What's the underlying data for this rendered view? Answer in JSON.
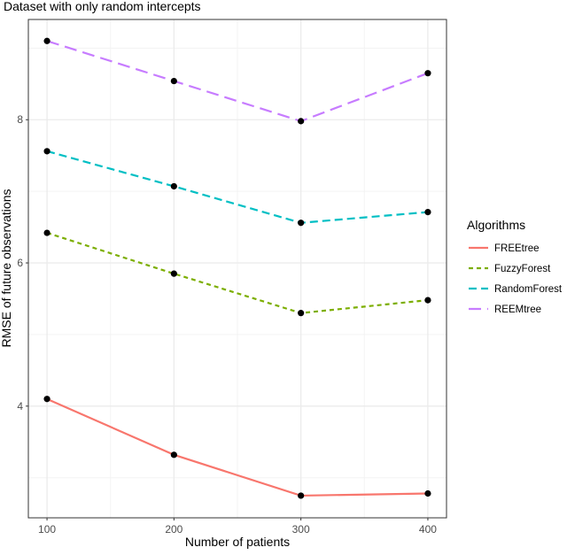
{
  "chart_data": {
    "type": "line",
    "title": "Dataset with only random intercepts",
    "xlabel": "Number of patients",
    "ylabel": "RMSE of future observations",
    "x": [
      100,
      200,
      300,
      400
    ],
    "xlim": [
      85.3,
      414.7
    ],
    "ylim": [
      2.44,
      9.4
    ],
    "xticks": [
      100,
      200,
      300,
      400
    ],
    "yticks": [
      4,
      6,
      8
    ],
    "xminor": [
      150,
      250,
      350
    ],
    "yminor": [
      3,
      5,
      7,
      9
    ],
    "grid": true,
    "legend": {
      "title": "Algorithms",
      "placement": "right"
    },
    "series": [
      {
        "name": "FREEtree",
        "color": "#F8766D",
        "dash": "solid",
        "values": [
          4.1,
          3.32,
          2.75,
          2.78
        ]
      },
      {
        "name": "FuzzyForest",
        "color": "#7CAE00",
        "dash": "short",
        "values": [
          6.42,
          5.85,
          5.3,
          5.48
        ]
      },
      {
        "name": "RandomForest",
        "color": "#00BFC4",
        "dash": "medium",
        "values": [
          7.56,
          7.07,
          6.56,
          6.71
        ]
      },
      {
        "name": "REEMtree",
        "color": "#C77CFF",
        "dash": "long",
        "values": [
          9.1,
          8.54,
          7.98,
          8.65
        ]
      }
    ]
  }
}
